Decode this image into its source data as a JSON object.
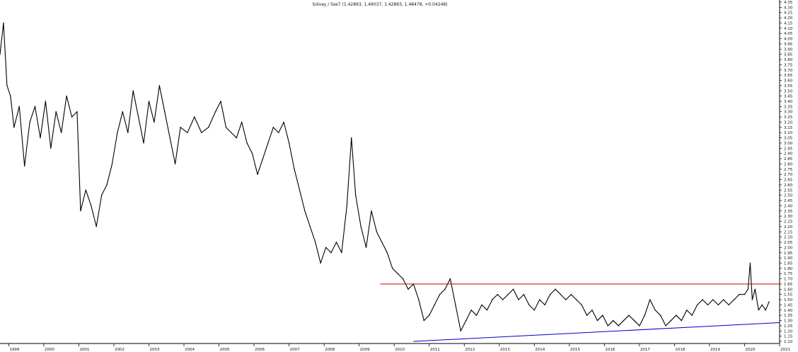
{
  "chart_data": {
    "type": "line",
    "title": "Solvay / Sse7 (1.42893, 1.49037, 1.42893, 1.48478, +0.04248)",
    "xlabel": "",
    "ylabel": "",
    "xlim": [
      1998.75,
      2021.0
    ],
    "ylim": [
      1.08,
      4.37
    ],
    "grid": false,
    "legend": "none",
    "x_ticks": [
      "1999",
      "2000",
      "2001",
      "2002",
      "2003",
      "2004",
      "2005",
      "2006",
      "2007",
      "2008",
      "2009",
      "2010",
      "2011",
      "2012",
      "2013",
      "2014",
      "2015",
      "2016",
      "2017",
      "2018",
      "2019",
      "2020",
      "2021"
    ],
    "y_ticks": [
      "1.10",
      "1.15",
      "1.20",
      "1.25",
      "1.30",
      "1.35",
      "1.40",
      "1.45",
      "1.50",
      "1.55",
      "1.60",
      "1.65",
      "1.70",
      "1.75",
      "1.80",
      "1.85",
      "1.90",
      "1.95",
      "2.00",
      "2.05",
      "2.10",
      "2.15",
      "2.20",
      "2.25",
      "2.30",
      "2.35",
      "2.40",
      "2.45",
      "2.50",
      "2.55",
      "2.60",
      "2.65",
      "2.70",
      "2.75",
      "2.80",
      "2.85",
      "2.90",
      "2.95",
      "3.00",
      "3.05",
      "3.10",
      "3.15",
      "3.20",
      "3.25",
      "3.30",
      "3.35",
      "3.40",
      "3.45",
      "3.50",
      "3.55",
      "3.60",
      "3.65",
      "3.70",
      "3.75",
      "3.80",
      "3.85",
      "3.90",
      "3.95",
      "4.00",
      "4.05",
      "4.10",
      "4.15",
      "4.20",
      "4.25",
      "4.30",
      "4.35"
    ],
    "series": [
      {
        "type": "ohlc",
        "color": "#000000",
        "points": [
          {
            "x": 1998.75,
            "y": 3.85
          },
          {
            "x": 1998.85,
            "y": 4.15
          },
          {
            "x": 1998.95,
            "y": 3.55
          },
          {
            "x": 1999.05,
            "y": 3.45
          },
          {
            "x": 1999.15,
            "y": 3.15
          },
          {
            "x": 1999.3,
            "y": 3.35
          },
          {
            "x": 1999.45,
            "y": 2.78
          },
          {
            "x": 1999.6,
            "y": 3.2
          },
          {
            "x": 1999.75,
            "y": 3.35
          },
          {
            "x": 1999.9,
            "y": 3.05
          },
          {
            "x": 2000.05,
            "y": 3.4
          },
          {
            "x": 2000.2,
            "y": 2.95
          },
          {
            "x": 2000.35,
            "y": 3.3
          },
          {
            "x": 2000.5,
            "y": 3.1
          },
          {
            "x": 2000.65,
            "y": 3.45
          },
          {
            "x": 2000.8,
            "y": 3.25
          },
          {
            "x": 2000.95,
            "y": 3.3
          },
          {
            "x": 2001.05,
            "y": 2.35
          },
          {
            "x": 2001.2,
            "y": 2.55
          },
          {
            "x": 2001.35,
            "y": 2.4
          },
          {
            "x": 2001.5,
            "y": 2.2
          },
          {
            "x": 2001.65,
            "y": 2.5
          },
          {
            "x": 2001.8,
            "y": 2.6
          },
          {
            "x": 2001.95,
            "y": 2.8
          },
          {
            "x": 2002.1,
            "y": 3.1
          },
          {
            "x": 2002.25,
            "y": 3.3
          },
          {
            "x": 2002.4,
            "y": 3.1
          },
          {
            "x": 2002.55,
            "y": 3.5
          },
          {
            "x": 2002.7,
            "y": 3.25
          },
          {
            "x": 2002.85,
            "y": 3.0
          },
          {
            "x": 2003.0,
            "y": 3.4
          },
          {
            "x": 2003.15,
            "y": 3.2
          },
          {
            "x": 2003.3,
            "y": 3.55
          },
          {
            "x": 2003.45,
            "y": 3.3
          },
          {
            "x": 2003.6,
            "y": 3.05
          },
          {
            "x": 2003.75,
            "y": 2.8
          },
          {
            "x": 2003.9,
            "y": 3.15
          },
          {
            "x": 2004.1,
            "y": 3.1
          },
          {
            "x": 2004.3,
            "y": 3.25
          },
          {
            "x": 2004.5,
            "y": 3.1
          },
          {
            "x": 2004.7,
            "y": 3.15
          },
          {
            "x": 2004.9,
            "y": 3.3
          },
          {
            "x": 2005.05,
            "y": 3.4
          },
          {
            "x": 2005.2,
            "y": 3.15
          },
          {
            "x": 2005.35,
            "y": 3.1
          },
          {
            "x": 2005.5,
            "y": 3.05
          },
          {
            "x": 2005.65,
            "y": 3.2
          },
          {
            "x": 2005.8,
            "y": 3.0
          },
          {
            "x": 2005.95,
            "y": 2.9
          },
          {
            "x": 2006.1,
            "y": 2.7
          },
          {
            "x": 2006.25,
            "y": 2.85
          },
          {
            "x": 2006.4,
            "y": 3.0
          },
          {
            "x": 2006.55,
            "y": 3.15
          },
          {
            "x": 2006.7,
            "y": 3.1
          },
          {
            "x": 2006.85,
            "y": 3.2
          },
          {
            "x": 2007.0,
            "y": 3.0
          },
          {
            "x": 2007.15,
            "y": 2.75
          },
          {
            "x": 2007.3,
            "y": 2.55
          },
          {
            "x": 2007.45,
            "y": 2.35
          },
          {
            "x": 2007.6,
            "y": 2.2
          },
          {
            "x": 2007.75,
            "y": 2.05
          },
          {
            "x": 2007.9,
            "y": 1.85
          },
          {
            "x": 2008.05,
            "y": 2.0
          },
          {
            "x": 2008.2,
            "y": 1.95
          },
          {
            "x": 2008.35,
            "y": 2.05
          },
          {
            "x": 2008.5,
            "y": 1.95
          },
          {
            "x": 2008.65,
            "y": 2.4
          },
          {
            "x": 2008.78,
            "y": 3.05
          },
          {
            "x": 2008.9,
            "y": 2.5
          },
          {
            "x": 2009.05,
            "y": 2.2
          },
          {
            "x": 2009.2,
            "y": 2.0
          },
          {
            "x": 2009.35,
            "y": 2.35
          },
          {
            "x": 2009.5,
            "y": 2.15
          },
          {
            "x": 2009.65,
            "y": 2.05
          },
          {
            "x": 2009.8,
            "y": 1.95
          },
          {
            "x": 2009.95,
            "y": 1.8
          },
          {
            "x": 2010.1,
            "y": 1.75
          },
          {
            "x": 2010.25,
            "y": 1.7
          },
          {
            "x": 2010.4,
            "y": 1.6
          },
          {
            "x": 2010.55,
            "y": 1.65
          },
          {
            "x": 2010.7,
            "y": 1.5
          },
          {
            "x": 2010.85,
            "y": 1.3
          },
          {
            "x": 2011.0,
            "y": 1.35
          },
          {
            "x": 2011.15,
            "y": 1.45
          },
          {
            "x": 2011.3,
            "y": 1.55
          },
          {
            "x": 2011.45,
            "y": 1.6
          },
          {
            "x": 2011.6,
            "y": 1.7
          },
          {
            "x": 2011.75,
            "y": 1.45
          },
          {
            "x": 2011.9,
            "y": 1.2
          },
          {
            "x": 2012.05,
            "y": 1.3
          },
          {
            "x": 2012.2,
            "y": 1.4
          },
          {
            "x": 2012.35,
            "y": 1.35
          },
          {
            "x": 2012.5,
            "y": 1.45
          },
          {
            "x": 2012.65,
            "y": 1.4
          },
          {
            "x": 2012.8,
            "y": 1.5
          },
          {
            "x": 2012.95,
            "y": 1.55
          },
          {
            "x": 2013.1,
            "y": 1.5
          },
          {
            "x": 2013.25,
            "y": 1.55
          },
          {
            "x": 2013.4,
            "y": 1.6
          },
          {
            "x": 2013.55,
            "y": 1.5
          },
          {
            "x": 2013.7,
            "y": 1.55
          },
          {
            "x": 2013.85,
            "y": 1.45
          },
          {
            "x": 2014.0,
            "y": 1.4
          },
          {
            "x": 2014.15,
            "y": 1.5
          },
          {
            "x": 2014.3,
            "y": 1.45
          },
          {
            "x": 2014.45,
            "y": 1.55
          },
          {
            "x": 2014.6,
            "y": 1.6
          },
          {
            "x": 2014.75,
            "y": 1.55
          },
          {
            "x": 2014.9,
            "y": 1.5
          },
          {
            "x": 2015.05,
            "y": 1.55
          },
          {
            "x": 2015.2,
            "y": 1.5
          },
          {
            "x": 2015.35,
            "y": 1.45
          },
          {
            "x": 2015.5,
            "y": 1.35
          },
          {
            "x": 2015.65,
            "y": 1.4
          },
          {
            "x": 2015.8,
            "y": 1.3
          },
          {
            "x": 2015.95,
            "y": 1.35
          },
          {
            "x": 2016.1,
            "y": 1.25
          },
          {
            "x": 2016.25,
            "y": 1.3
          },
          {
            "x": 2016.4,
            "y": 1.25
          },
          {
            "x": 2016.55,
            "y": 1.3
          },
          {
            "x": 2016.7,
            "y": 1.35
          },
          {
            "x": 2016.85,
            "y": 1.3
          },
          {
            "x": 2017.0,
            "y": 1.25
          },
          {
            "x": 2017.15,
            "y": 1.35
          },
          {
            "x": 2017.3,
            "y": 1.5
          },
          {
            "x": 2017.45,
            "y": 1.4
          },
          {
            "x": 2017.6,
            "y": 1.35
          },
          {
            "x": 2017.75,
            "y": 1.25
          },
          {
            "x": 2017.9,
            "y": 1.3
          },
          {
            "x": 2018.05,
            "y": 1.35
          },
          {
            "x": 2018.2,
            "y": 1.3
          },
          {
            "x": 2018.35,
            "y": 1.4
          },
          {
            "x": 2018.5,
            "y": 1.35
          },
          {
            "x": 2018.65,
            "y": 1.45
          },
          {
            "x": 2018.8,
            "y": 1.5
          },
          {
            "x": 2018.95,
            "y": 1.45
          },
          {
            "x": 2019.1,
            "y": 1.5
          },
          {
            "x": 2019.25,
            "y": 1.45
          },
          {
            "x": 2019.4,
            "y": 1.5
          },
          {
            "x": 2019.55,
            "y": 1.45
          },
          {
            "x": 2019.7,
            "y": 1.5
          },
          {
            "x": 2019.85,
            "y": 1.55
          },
          {
            "x": 2020.0,
            "y": 1.55
          },
          {
            "x": 2020.1,
            "y": 1.6
          },
          {
            "x": 2020.16,
            "y": 1.85
          },
          {
            "x": 2020.22,
            "y": 1.5
          },
          {
            "x": 2020.3,
            "y": 1.6
          },
          {
            "x": 2020.4,
            "y": 1.4
          },
          {
            "x": 2020.5,
            "y": 1.45
          },
          {
            "x": 2020.6,
            "y": 1.4
          },
          {
            "x": 2020.7,
            "y": 1.48
          }
        ]
      }
    ],
    "annotations": [
      {
        "type": "horizontal_line",
        "color": "#cc0000",
        "y": 1.65,
        "x_start": 2009.6,
        "x_end": 2021.0
      },
      {
        "type": "trend_line",
        "color": "#0000cc",
        "x_start": 2010.55,
        "y_start": 1.1,
        "x_end": 2021.0,
        "y_end": 1.28
      }
    ]
  }
}
